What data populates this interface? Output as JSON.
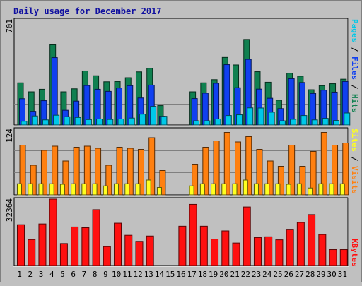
{
  "title": "Daily usage for December 2017",
  "x_labels": [
    "1",
    "2",
    "3",
    "4",
    "5",
    "6",
    "7",
    "8",
    "9",
    "10",
    "11",
    "12",
    "13",
    "14",
    "15",
    "16",
    "17",
    "18",
    "19",
    "20",
    "21",
    "22",
    "23",
    "24",
    "25",
    "26",
    "27",
    "28",
    "29",
    "30",
    "31"
  ],
  "weekend_days": [
    3,
    9,
    10,
    16,
    17,
    23,
    24,
    30,
    31
  ],
  "colors": {
    "background": "#c0c0c0",
    "panel": "#c0c0c0",
    "pages": "#00c8e8",
    "files": "#1040f0",
    "hits": "#108050",
    "sites": "#ffff20",
    "visits": "#ff8010",
    "kbytes": "#ff1010",
    "title": "#1010a0",
    "weekday_label": "#000000",
    "weekend_label": "#108050"
  },
  "legend": {
    "pages": "Pages",
    "files": "Files",
    "hits": "Hits",
    "sites": "Sites",
    "visits": "Visits",
    "kbytes": "KBytes",
    "sep": " / "
  },
  "chart_data": [
    {
      "type": "bar",
      "panel": "top",
      "ylabel": "701",
      "ylim": [
        0,
        701
      ],
      "series": [
        {
          "name": "Hits",
          "values": [
            281,
            221,
            238,
            534,
            221,
            241,
            360,
            328,
            288,
            290,
            315,
            354,
            378,
            129,
            0,
            0,
            221,
            281,
            302,
            450,
            400,
            570,
            355,
            285,
            165,
            345,
            325,
            235,
            262,
            275,
            305
          ]
        },
        {
          "name": "Files",
          "values": [
            175,
            91,
            162,
            449,
            98,
            159,
            263,
            238,
            224,
            246,
            262,
            180,
            266,
            58,
            0,
            0,
            176,
            212,
            278,
            402,
            248,
            437,
            239,
            178,
            109,
            308,
            283,
            210,
            232,
            219,
            290
          ]
        },
        {
          "name": "Pages",
          "values": [
            25,
            60,
            34,
            65,
            55,
            50,
            36,
            40,
            37,
            40,
            46,
            72,
            124,
            58,
            0,
            0,
            28,
            28,
            40,
            63,
            68,
            114,
            113,
            85,
            28,
            38,
            63,
            34,
            44,
            30,
            80
          ]
        }
      ]
    },
    {
      "type": "bar",
      "panel": "middle",
      "ylabel": "124",
      "ylim": [
        0,
        124
      ],
      "series": [
        {
          "name": "Visits",
          "values": [
            94,
            56,
            84,
            92,
            64,
            90,
            92,
            88,
            56,
            90,
            88,
            86,
            108,
            46,
            0,
            0,
            58,
            90,
            102,
            118,
            100,
            110,
            86,
            64,
            54,
            94,
            54,
            82,
            118,
            94,
            98
          ]
        },
        {
          "name": "Sites",
          "values": [
            21,
            21,
            21,
            21,
            20,
            21,
            21,
            21,
            17,
            21,
            21,
            21,
            28,
            14,
            0,
            0,
            17,
            21,
            21,
            21,
            21,
            28,
            21,
            21,
            21,
            20,
            21,
            13,
            21,
            21,
            21
          ]
        }
      ]
    },
    {
      "type": "bar",
      "panel": "bottom",
      "ylabel": "32364",
      "ylim": [
        0,
        32364
      ],
      "series": [
        {
          "name": "KBytes",
          "values": [
            19895,
            12650,
            20264,
            32364,
            10720,
            18790,
            18420,
            27218,
            9211,
            20632,
            14737,
            11791,
            14368,
            0,
            0,
            19159,
            29802,
            19159,
            12895,
            16869,
            10966,
            28540,
            13631,
            13999,
            12526,
            17683,
            21000,
            24826,
            15105,
            7737,
            7737
          ]
        }
      ]
    }
  ]
}
